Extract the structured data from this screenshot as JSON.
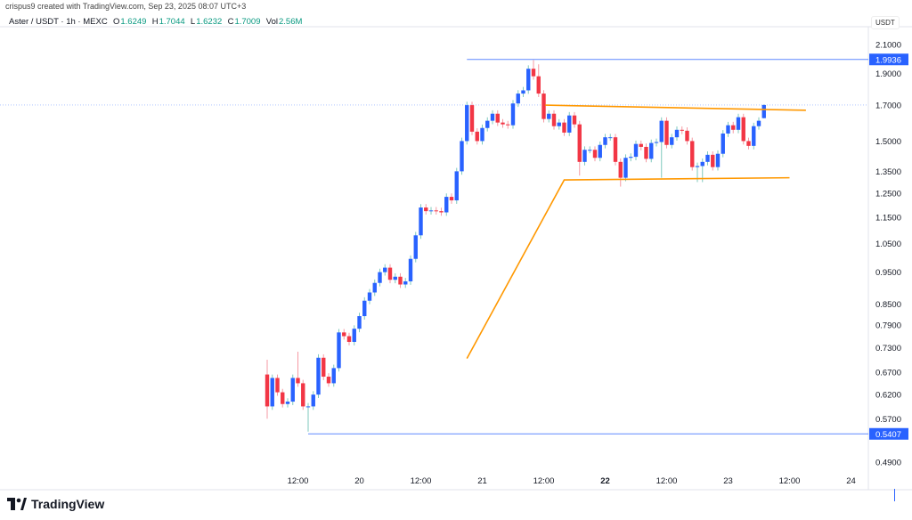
{
  "credit": "crispus9 created with TradingView.com, Sep 23, 2025 08:07 UTC+3",
  "legend": {
    "symbol": "Aster / USDT · 1h · MEXC",
    "o_label": "O",
    "o": "1.6249",
    "h_label": "H",
    "h": "1.7044",
    "l_label": "L",
    "l": "1.6232",
    "c_label": "C",
    "c": "1.7009",
    "vol_label": "Vol",
    "vol": "2.56M"
  },
  "currency": "USDT",
  "brand": "TradingView",
  "colors": {
    "up": "#2962ff",
    "down": "#f23645",
    "up_wick": "#7fc9bd",
    "down_wick": "#f59aa3",
    "drawing": "#ff9800",
    "level": "#2962ff"
  },
  "chart_data": {
    "type": "candlestick",
    "title": "Aster / USDT 1h",
    "y_scale": "log",
    "ylim": [
      0.49,
      2.1
    ],
    "y_ticks": [
      "2.1000",
      "1.9000",
      "1.7000",
      "1.5000",
      "1.3500",
      "1.2500",
      "1.1500",
      "1.0500",
      "0.9500",
      "0.8500",
      "0.7900",
      "0.7300",
      "0.6700",
      "0.6200",
      "0.5700",
      "0.4900"
    ],
    "x_start": "Sep 19 06:00",
    "x_ticks": [
      {
        "hour": 6,
        "label": "12:00"
      },
      {
        "hour": 18,
        "label": "20"
      },
      {
        "hour": 30,
        "label": "12:00"
      },
      {
        "hour": 42,
        "label": "21"
      },
      {
        "hour": 54,
        "label": "12:00"
      },
      {
        "hour": 66,
        "label": "22",
        "bold": true
      },
      {
        "hour": 78,
        "label": "12:00"
      },
      {
        "hour": 90,
        "label": "23"
      },
      {
        "hour": 102,
        "label": "12:00"
      },
      {
        "hour": 114,
        "label": "24"
      }
    ],
    "first_open": 0.665,
    "closes": [
      0.595,
      0.657,
      0.625,
      0.6,
      0.605,
      0.657,
      0.645,
      0.595,
      0.595,
      0.62,
      0.705,
      0.66,
      0.645,
      0.68,
      0.77,
      0.76,
      0.745,
      0.78,
      0.815,
      0.86,
      0.885,
      0.915,
      0.95,
      0.965,
      0.925,
      0.935,
      0.91,
      0.92,
      0.995,
      1.08,
      1.19,
      1.175,
      1.178,
      1.175,
      1.17,
      1.235,
      1.22,
      1.35,
      1.5,
      1.7,
      1.55,
      1.5,
      1.57,
      1.61,
      1.65,
      1.6,
      1.59,
      1.585,
      1.71,
      1.77,
      1.79,
      1.93,
      1.88,
      1.77,
      1.62,
      1.65,
      1.58,
      1.6,
      1.545,
      1.64,
      1.59,
      1.395,
      1.455,
      1.455,
      1.415,
      1.48,
      1.52,
      1.52,
      1.395,
      1.32,
      1.415,
      1.42,
      1.485,
      1.47,
      1.41,
      1.49,
      1.495,
      1.61,
      1.48,
      1.52,
      1.56,
      1.555,
      1.5,
      1.37,
      1.375,
      1.395,
      1.43,
      1.37,
      1.435,
      1.54,
      1.585,
      1.56,
      1.63,
      1.5,
      1.475,
      1.58,
      1.61,
      1.7009
    ],
    "last_open": 1.6249,
    "last_high": 1.7044,
    "last_low": 1.6232,
    "wick_overrides": [
      {
        "index": 0,
        "high": 0.7,
        "low": 0.57
      },
      {
        "index": 6,
        "high": 0.72
      },
      {
        "index": 8,
        "low": 0.545
      },
      {
        "index": 52,
        "high": 1.99
      },
      {
        "index": 53,
        "high": 1.96
      },
      {
        "index": 61,
        "low": 1.33
      },
      {
        "index": 69,
        "low": 1.28
      },
      {
        "index": 77,
        "low": 1.32
      },
      {
        "index": 84,
        "low": 1.3
      },
      {
        "index": 85,
        "low": 1.3
      }
    ],
    "levels": [
      {
        "price": 1.9936,
        "label": "1.9936",
        "from_hour": 39
      },
      {
        "price": 0.5407,
        "label": "0.5407",
        "from_hour": 8
      }
    ],
    "current_price": 1.7009,
    "drawings": [
      {
        "name": "flag-pole-and-base",
        "points": [
          [
            39,
            0.703
          ],
          [
            58,
            1.31
          ],
          [
            102,
            1.32
          ]
        ]
      },
      {
        "name": "upper-trendline",
        "points": [
          [
            54.3,
            1.7
          ],
          [
            105.2,
            1.67
          ]
        ]
      }
    ]
  }
}
